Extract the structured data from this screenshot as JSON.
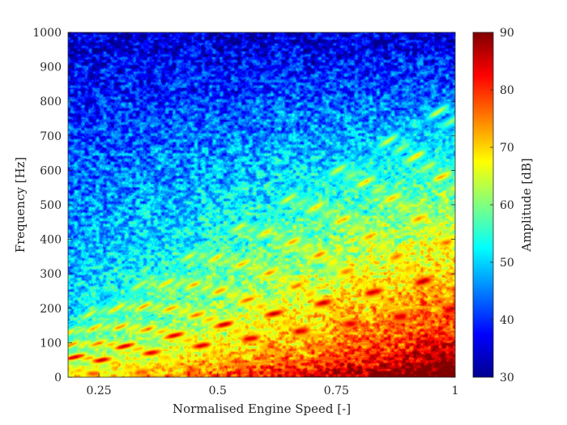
{
  "chart_data": {
    "type": "heatmap",
    "title": "",
    "xlabel": "Normalised Engine Speed [-]",
    "ylabel": "Frequency [Hz]",
    "xlim": [
      0.185,
      1.0
    ],
    "ylim": [
      0,
      1000
    ],
    "xticks": [
      0.25,
      0.5,
      0.75,
      1.0
    ],
    "xtick_labels": [
      "0.25",
      "0.5",
      "0.75",
      "1"
    ],
    "yticks": [
      0,
      100,
      200,
      300,
      400,
      500,
      600,
      700,
      800,
      900,
      1000
    ],
    "ytick_labels": [
      "0",
      "100",
      "200",
      "300",
      "400",
      "500",
      "600",
      "700",
      "800",
      "900",
      "1000"
    ],
    "colorbar": {
      "label": "Amplitude [dB]",
      "range": [
        30,
        90
      ],
      "ticks": [
        30,
        40,
        50,
        60,
        70,
        80,
        90
      ],
      "tick_labels": [
        "30",
        "40",
        "50",
        "60",
        "70",
        "80",
        "90"
      ],
      "colormap": "jet"
    },
    "series": [
      {
        "order": 0.5,
        "peak_db": 78
      },
      {
        "order": 1.0,
        "peak_db": 72
      },
      {
        "order": 1.5,
        "peak_db": 72
      },
      {
        "order": 2.0,
        "peak_db": 85
      },
      {
        "order": 2.5,
        "peak_db": 72
      },
      {
        "order": 3.0,
        "peak_db": 86
      },
      {
        "order": 3.5,
        "peak_db": 72
      },
      {
        "order": 4.0,
        "peak_db": 76
      },
      {
        "order": 4.5,
        "peak_db": 68
      },
      {
        "order": 5.0,
        "peak_db": 74
      },
      {
        "order": 5.5,
        "peak_db": 66
      },
      {
        "order": 6.0,
        "peak_db": 72
      },
      {
        "order": 6.5,
        "peak_db": 64
      },
      {
        "order": 7.0,
        "peak_db": 70
      },
      {
        "order": 7.5,
        "peak_db": 62
      },
      {
        "order": 8.0,
        "peak_db": 66
      }
    ],
    "order_scale_hz": 100,
    "background_db": {
      "low_freq_high_speed": 80,
      "high_freq_low_speed": 35
    },
    "grid": false,
    "legend": "none"
  }
}
